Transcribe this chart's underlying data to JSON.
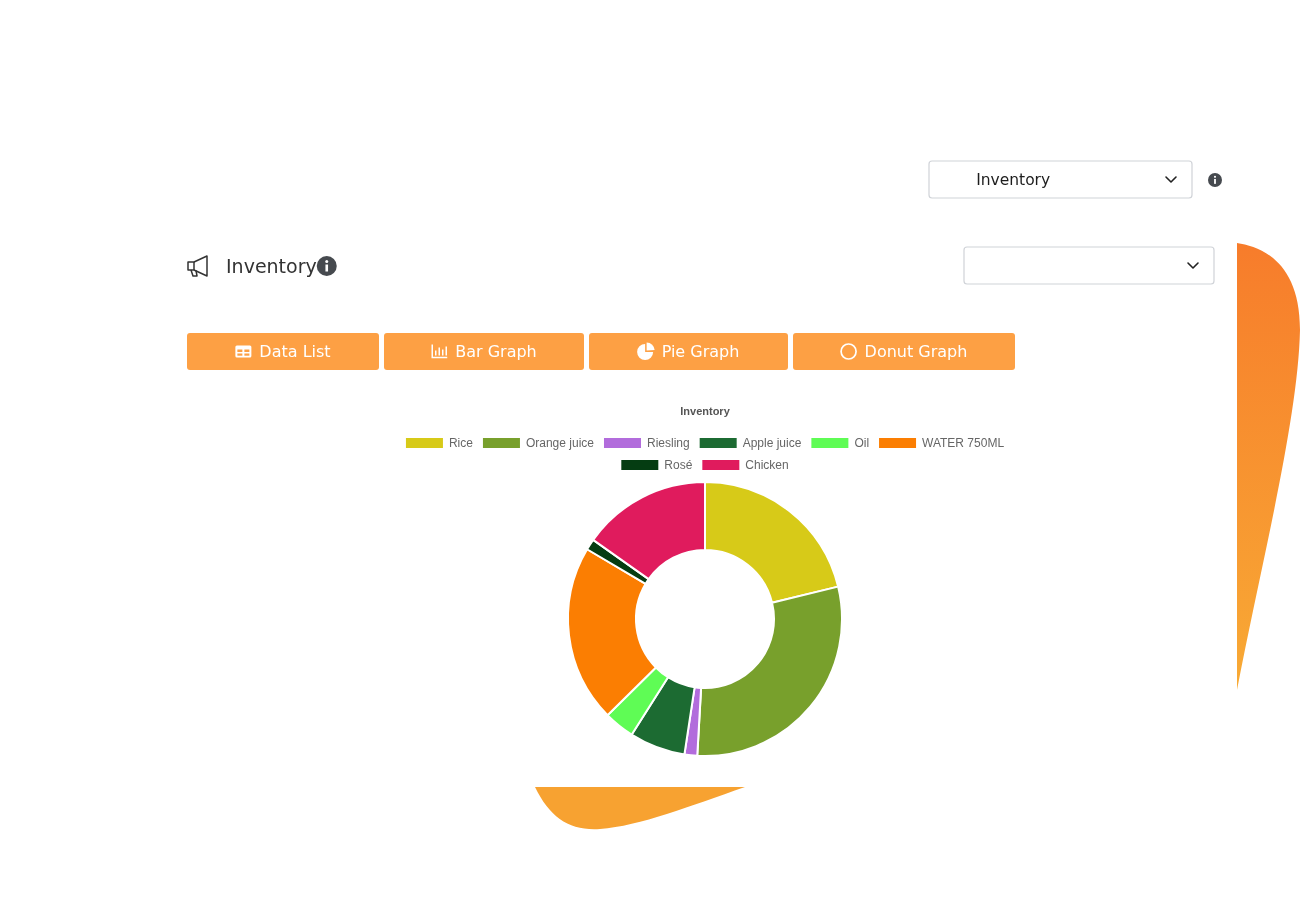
{
  "chart_data": {
    "type": "donut",
    "title": "Inventory",
    "categories": [
      "Rice",
      "Orange juice",
      "Riesling",
      "Apple juice",
      "Oil",
      "WATER 750ML",
      "Rosé",
      "Chicken"
    ],
    "values": [
      21.2,
      29.7,
      1.5,
      6.6,
      3.6,
      20.9,
      1.3,
      15.2
    ],
    "colors": [
      "#d7ca18",
      "#78a02c",
      "#b26cdc",
      "#1c6b32",
      "#5ffc55",
      "#fb7e02",
      "#053d12",
      "#e01b5d"
    ],
    "legend": "top",
    "annotations": [
      "Inventory",
      "Inventory",
      "Data List",
      "Bar Graph",
      "Pie Graph",
      "Donut Graph"
    ]
  }
}
